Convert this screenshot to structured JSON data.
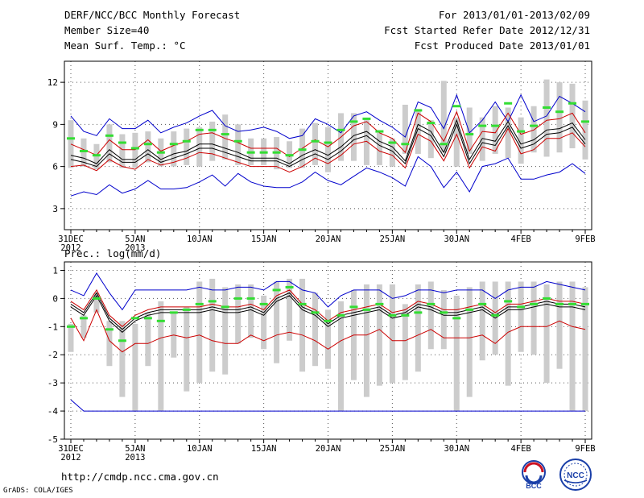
{
  "header": {
    "title": "DERF/NCC/BCC Monthly Forecast",
    "member_size": "Member Size=40",
    "variable_top": "Mean Surf. Temp.: °C",
    "forecast_range": "For 2013/01/01-2013/02/09",
    "started_date": "Fcst Started Refer Date 2012/12/31",
    "produced_date": "Fcst Produced Date 2013/01/01"
  },
  "footer": {
    "url": "http://cmdp.ncc.cma.gov.cn",
    "credit": "GrADS: COLA/IGES",
    "logo_left_text": "BCC",
    "logo_right_text": "NCC"
  },
  "colors": {
    "max_line": "#0000cc",
    "min_line": "#cc0000",
    "ensemble_mean": "#000000",
    "spread_fill": "#e0e0e0",
    "bar": "#cccccc",
    "marker": "#33dd33"
  },
  "chart_data": [
    {
      "type": "line",
      "title": "Mean Surf. Temp.: °C",
      "ylim": [
        1.5,
        13.5
      ],
      "yticks": [
        3,
        6,
        9,
        12
      ],
      "x": [
        0,
        1,
        2,
        3,
        4,
        5,
        6,
        7,
        8,
        9,
        10,
        11,
        12,
        13,
        14,
        15,
        16,
        17,
        18,
        19,
        20,
        21,
        22,
        23,
        24,
        25,
        26,
        27,
        28,
        29,
        30,
        31,
        32,
        33,
        34,
        35,
        36,
        37,
        38,
        39,
        40
      ],
      "xtick_positions": [
        0,
        5,
        10,
        15,
        20,
        25,
        30,
        35,
        40
      ],
      "xtick_labels": [
        "31DEC",
        "5JAN",
        "10JAN",
        "15JAN",
        "20JAN",
        "25JAN",
        "30JAN",
        "4FEB",
        "9FEB"
      ],
      "xtick_sublabels": [
        "2012",
        "2013",
        "",
        "",
        "",
        "",
        "",
        "",
        ""
      ],
      "bar_low": [
        5.9,
        6.0,
        5.8,
        6.3,
        5.9,
        5.9,
        6.3,
        6.0,
        6.0,
        6.1,
        6.0,
        6.4,
        6.5,
        6.1,
        6.1,
        6.1,
        5.8,
        5.9,
        5.9,
        6.1,
        5.6,
        6.4,
        6.4,
        6.1,
        6.1,
        6.0,
        6.9,
        6.9,
        6.6,
        7.0,
        6.0,
        6.9,
        6.4,
        6.9,
        6.6,
        6.2,
        7.0,
        6.7,
        7.0,
        7.3,
        6.5
      ],
      "bar_high": [
        9.3,
        8.0,
        7.6,
        9.0,
        8.3,
        8.4,
        8.5,
        8.0,
        8.5,
        8.7,
        8.8,
        9.2,
        9.7,
        9.0,
        8.0,
        8.0,
        8.1,
        7.8,
        8.7,
        9.1,
        8.8,
        9.8,
        9.8,
        9.3,
        8.4,
        8.0,
        10.4,
        10.1,
        9.3,
        12.1,
        9.5,
        10.2,
        9.5,
        10.3,
        10.2,
        9.5,
        10.3,
        12.2,
        12.0,
        11.9,
        10.7
      ],
      "series": [
        {
          "name": "max",
          "role": "max_line",
          "values": [
            9.6,
            8.5,
            8.2,
            9.4,
            8.7,
            8.7,
            9.3,
            8.4,
            8.8,
            9.1,
            9.6,
            10.0,
            8.9,
            8.5,
            8.6,
            8.8,
            8.5,
            8.0,
            8.2,
            9.4,
            9.0,
            8.4,
            9.6,
            9.9,
            9.3,
            8.8,
            8.1,
            10.6,
            10.2,
            8.7,
            11.1,
            8.4,
            9.3,
            10.6,
            9.2,
            11.1,
            9.2,
            9.6,
            11.0,
            10.5,
            9.9
          ]
        },
        {
          "name": "ensemble_upper",
          "role": "min_line",
          "values": [
            7.6,
            7.2,
            6.8,
            7.9,
            7.2,
            7.2,
            7.9,
            7.1,
            7.5,
            7.8,
            8.3,
            8.4,
            8.0,
            7.7,
            7.3,
            7.3,
            7.3,
            6.7,
            7.3,
            7.9,
            7.4,
            8.1,
            8.9,
            9.2,
            8.4,
            8.0,
            7.0,
            9.8,
            9.2,
            7.8,
            9.9,
            7.1,
            8.5,
            8.4,
            9.8,
            8.3,
            8.6,
            9.3,
            9.4,
            9.8,
            8.4
          ]
        },
        {
          "name": "ensemble_mean",
          "role": "ensemble_mean",
          "values": [
            6.8,
            6.6,
            6.2,
            7.2,
            6.5,
            6.5,
            7.2,
            6.5,
            6.9,
            7.1,
            7.6,
            7.6,
            7.3,
            7.0,
            6.6,
            6.6,
            6.6,
            6.2,
            6.8,
            7.2,
            6.8,
            7.4,
            8.2,
            8.5,
            7.8,
            7.4,
            6.4,
            9.0,
            8.5,
            7.0,
            9.3,
            6.5,
            8.0,
            7.8,
            9.2,
            7.6,
            7.9,
            8.6,
            8.7,
            9.1,
            7.9
          ]
        },
        {
          "name": "ensemble_lower",
          "role": "ensemble_mean",
          "values": [
            6.5,
            6.3,
            6.0,
            6.9,
            6.3,
            6.3,
            6.9,
            6.3,
            6.6,
            6.9,
            7.3,
            7.3,
            7.0,
            6.7,
            6.4,
            6.4,
            6.4,
            6.0,
            6.5,
            6.9,
            6.5,
            7.1,
            7.9,
            8.2,
            7.5,
            7.1,
            6.2,
            8.7,
            8.2,
            6.7,
            9.0,
            6.2,
            7.7,
            7.5,
            8.9,
            7.3,
            7.6,
            8.3,
            8.4,
            8.8,
            7.6
          ]
        },
        {
          "name": "min",
          "role": "min_line",
          "values": [
            6.0,
            6.1,
            5.7,
            6.5,
            6.0,
            5.8,
            6.5,
            6.1,
            6.3,
            6.6,
            7.0,
            6.9,
            6.6,
            6.3,
            6.0,
            6.0,
            6.0,
            5.6,
            6.0,
            6.6,
            6.2,
            6.8,
            7.6,
            7.8,
            7.1,
            6.8,
            5.9,
            8.3,
            7.8,
            6.4,
            8.3,
            5.9,
            7.4,
            7.1,
            8.7,
            6.9,
            7.2,
            8.0,
            8.0,
            8.4,
            7.4
          ]
        },
        {
          "name": "absolute_min",
          "role": "max_line",
          "values": [
            3.9,
            4.2,
            4.0,
            4.7,
            4.1,
            4.4,
            5.0,
            4.4,
            4.4,
            4.5,
            4.9,
            5.4,
            4.6,
            5.5,
            4.9,
            4.6,
            4.5,
            4.5,
            4.9,
            5.6,
            5.0,
            4.7,
            5.3,
            5.9,
            5.6,
            5.2,
            4.6,
            6.7,
            6.0,
            4.5,
            5.6,
            4.2,
            6.0,
            6.2,
            6.6,
            5.1,
            5.1,
            5.4,
            5.6,
            6.2,
            5.5
          ]
        }
      ],
      "markers": [
        8.0,
        7.1,
        6.8,
        8.2,
        7.7,
        7.3,
        7.6,
        7.0,
        7.6,
        7.8,
        8.6,
        8.6,
        8.3,
        7.8,
        7.0,
        7.0,
        7.0,
        6.8,
        7.2,
        7.8,
        7.7,
        8.6,
        9.2,
        9.4,
        8.5,
        7.7,
        7.6,
        10.0,
        9.1,
        7.6,
        10.3,
        8.3,
        8.9,
        8.9,
        10.5,
        8.5,
        8.9,
        10.2,
        9.9,
        10.5,
        9.2
      ]
    },
    {
      "type": "line",
      "title": "Prec.: log(mm/d)",
      "ylim": [
        -5,
        1.3
      ],
      "yticks": [
        -5,
        -4,
        -3,
        -2,
        -1,
        0,
        1
      ],
      "x": [
        0,
        1,
        2,
        3,
        4,
        5,
        6,
        7,
        8,
        9,
        10,
        11,
        12,
        13,
        14,
        15,
        16,
        17,
        18,
        19,
        20,
        21,
        22,
        23,
        24,
        25,
        26,
        27,
        28,
        29,
        30,
        31,
        32,
        33,
        34,
        35,
        36,
        37,
        38,
        39,
        40
      ],
      "xtick_positions": [
        0,
        5,
        10,
        15,
        20,
        25,
        30,
        35,
        40
      ],
      "xtick_labels": [
        "31DEC",
        "5JAN",
        "10JAN",
        "15JAN",
        "20JAN",
        "25JAN",
        "30JAN",
        "4FEB",
        "9FEB"
      ],
      "xtick_sublabels": [
        "2012",
        "2013",
        "",
        "",
        "",
        "",
        "",
        "",
        ""
      ],
      "bar_low": [
        -1.9,
        -1.4,
        -0.5,
        -2.4,
        -3.5,
        -4.0,
        -2.4,
        -4.0,
        -2.1,
        -3.3,
        -3.0,
        -2.6,
        -2.7,
        -1.6,
        -1.4,
        -1.8,
        -2.3,
        -1.5,
        -2.6,
        -2.4,
        -2.5,
        -4.0,
        -2.9,
        -3.5,
        -3.1,
        -3.0,
        -2.9,
        -2.6,
        -1.8,
        -1.8,
        -4.0,
        -3.5,
        -2.2,
        -2.0,
        -3.1,
        -1.9,
        -2.0,
        -3.0,
        -2.5,
        -4.0,
        -4.0
      ],
      "bar_high": [
        -0.9,
        -0.6,
        0.2,
        -0.8,
        -0.8,
        -0.9,
        -0.5,
        -0.1,
        -0.5,
        -0.3,
        0.6,
        0.7,
        0.4,
        0.5,
        0.5,
        0.1,
        0.6,
        0.7,
        0.7,
        0.2,
        -0.4,
        -0.1,
        0.3,
        0.5,
        0.5,
        0.5,
        -0.2,
        0.5,
        0.6,
        0.3,
        0.1,
        0.4,
        0.6,
        0.6,
        0.6,
        0.6,
        0.6,
        0.5,
        0.6,
        0.6,
        0.4
      ],
      "series": [
        {
          "name": "max",
          "role": "max_line",
          "values": [
            0.3,
            0.1,
            0.9,
            0.2,
            -0.4,
            0.3,
            0.3,
            0.3,
            0.3,
            0.3,
            0.4,
            0.3,
            0.3,
            0.4,
            0.4,
            0.3,
            0.6,
            0.6,
            0.3,
            0.2,
            -0.3,
            0.1,
            0.3,
            0.3,
            0.3,
            0.0,
            0.1,
            0.3,
            0.3,
            0.2,
            0.3,
            0.3,
            0.3,
            0.0,
            0.3,
            0.4,
            0.4,
            0.6,
            0.5,
            0.4,
            0.3
          ]
        },
        {
          "name": "ensemble_upper",
          "role": "min_line",
          "values": [
            -0.1,
            -0.4,
            0.3,
            -0.6,
            -1.0,
            -0.6,
            -0.4,
            -0.3,
            -0.3,
            -0.3,
            -0.3,
            -0.2,
            -0.3,
            -0.3,
            -0.2,
            -0.4,
            0.1,
            0.3,
            -0.2,
            -0.4,
            -0.8,
            -0.5,
            -0.4,
            -0.3,
            -0.2,
            -0.5,
            -0.4,
            -0.1,
            -0.2,
            -0.4,
            -0.4,
            -0.3,
            -0.2,
            -0.5,
            -0.2,
            -0.2,
            -0.1,
            0.0,
            -0.1,
            -0.1,
            -0.2
          ]
        },
        {
          "name": "ensemble_mean",
          "role": "ensemble_mean",
          "values": [
            -0.2,
            -0.5,
            0.2,
            -0.7,
            -1.1,
            -0.7,
            -0.5,
            -0.4,
            -0.4,
            -0.4,
            -0.4,
            -0.3,
            -0.4,
            -0.4,
            -0.3,
            -0.5,
            0.0,
            0.2,
            -0.3,
            -0.5,
            -0.9,
            -0.6,
            -0.5,
            -0.4,
            -0.3,
            -0.6,
            -0.5,
            -0.2,
            -0.3,
            -0.5,
            -0.5,
            -0.4,
            -0.3,
            -0.6,
            -0.3,
            -0.3,
            -0.2,
            -0.1,
            -0.2,
            -0.2,
            -0.3
          ]
        },
        {
          "name": "ensemble_lower",
          "role": "ensemble_mean",
          "values": [
            -0.3,
            -0.6,
            0.1,
            -0.8,
            -1.2,
            -0.8,
            -0.6,
            -0.5,
            -0.5,
            -0.5,
            -0.5,
            -0.4,
            -0.5,
            -0.5,
            -0.4,
            -0.6,
            -0.1,
            0.1,
            -0.4,
            -0.6,
            -1.0,
            -0.7,
            -0.6,
            -0.5,
            -0.4,
            -0.7,
            -0.6,
            -0.3,
            -0.4,
            -0.6,
            -0.6,
            -0.5,
            -0.4,
            -0.7,
            -0.4,
            -0.4,
            -0.3,
            -0.2,
            -0.3,
            -0.3,
            -0.4
          ]
        },
        {
          "name": "min",
          "role": "min_line",
          "values": [
            -0.7,
            -1.5,
            -0.4,
            -1.5,
            -1.9,
            -1.6,
            -1.6,
            -1.4,
            -1.3,
            -1.4,
            -1.3,
            -1.5,
            -1.6,
            -1.6,
            -1.3,
            -1.5,
            -1.3,
            -1.2,
            -1.3,
            -1.5,
            -1.8,
            -1.5,
            -1.3,
            -1.3,
            -1.1,
            -1.5,
            -1.5,
            -1.3,
            -1.1,
            -1.4,
            -1.4,
            -1.4,
            -1.3,
            -1.6,
            -1.2,
            -1.0,
            -1.0,
            -1.0,
            -0.8,
            -1.0,
            -1.1
          ]
        },
        {
          "name": "absolute_min",
          "role": "max_line",
          "values": [
            -3.6,
            -4.0,
            -4.0,
            -4.0,
            -4.0,
            -4.0,
            -4.0,
            -4.0,
            -4.0,
            -4.0,
            -4.0,
            -4.0,
            -4.0,
            -4.0,
            -4.0,
            -4.0,
            -4.0,
            -4.0,
            -4.0,
            -4.0,
            -4.0,
            -4.0,
            -4.0,
            -4.0,
            -4.0,
            -4.0,
            -4.0,
            -4.0,
            -4.0,
            -4.0,
            -4.0,
            -4.0,
            -4.0,
            -4.0,
            -4.0,
            -4.0,
            -4.0,
            -4.0,
            -4.0,
            -4.0,
            -4.0
          ]
        }
      ],
      "markers": [
        -1.0,
        -0.7,
        0.0,
        -1.1,
        -1.5,
        -0.7,
        -0.7,
        -0.8,
        -0.5,
        -0.4,
        -0.2,
        -0.1,
        -0.3,
        0.0,
        0.0,
        -0.2,
        0.3,
        0.4,
        -0.2,
        -0.5,
        -0.8,
        -0.6,
        -0.3,
        -0.4,
        -0.2,
        -0.6,
        -0.6,
        -0.5,
        -0.2,
        -0.5,
        -0.7,
        -0.4,
        -0.2,
        -0.6,
        -0.1,
        -0.3,
        -0.2,
        0.0,
        -0.2,
        -0.2,
        -0.2
      ]
    }
  ]
}
